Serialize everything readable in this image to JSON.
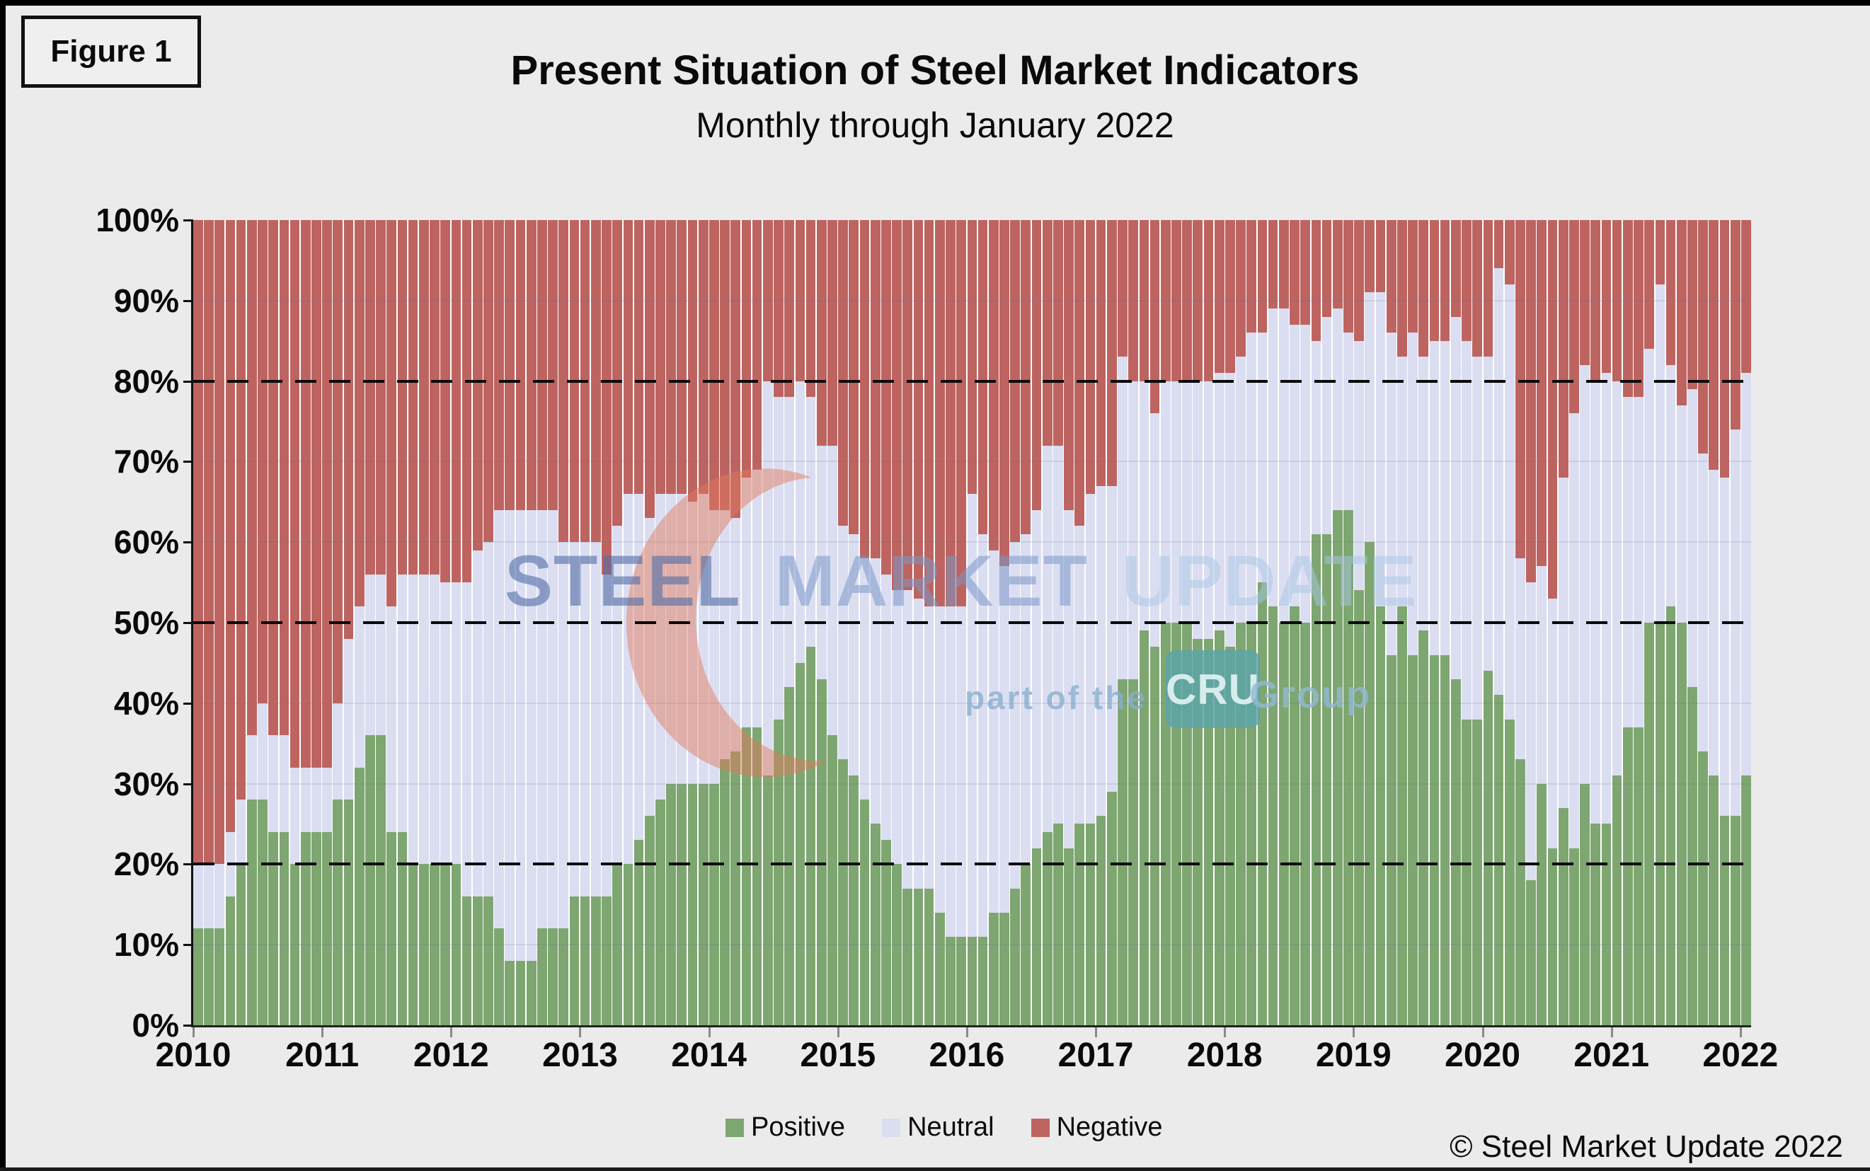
{
  "figure_label": "Figure 1",
  "title": "Present Situation of Steel Market Indicators",
  "subtitle": "Monthly through January 2022",
  "copyright": "© Steel Market Update 2022",
  "legend": [
    {
      "label": "Positive",
      "color": "#7EA671"
    },
    {
      "label": "Neutral",
      "color": "#DBDEF1"
    },
    {
      "label": "Negative",
      "color": "#BD6461"
    }
  ],
  "watermark": {
    "words": [
      "STEEL",
      "MARKET",
      "UPDATE"
    ],
    "tagline_prefix": "part of the",
    "cru_badge": "CRU",
    "tagline_suffix": "Group"
  },
  "colors": {
    "background": "#EBEBEB",
    "plot_background": "#FFFFFF",
    "positive": "#7EA671",
    "neutral": "#DBDEF1",
    "negative": "#BD6461",
    "axis": "#111111",
    "dashed_line": "#0A0A0A"
  },
  "chart_data": {
    "type": "bar",
    "stacked": true,
    "units": "percent",
    "x_monthly_range": {
      "start": "2010-01",
      "end": "2022-01",
      "points": 145
    },
    "x_tick_labels": [
      "2010",
      "2011",
      "2012",
      "2013",
      "2014",
      "2015",
      "2016",
      "2017",
      "2018",
      "2019",
      "2020",
      "2021",
      "2022"
    ],
    "y_tick_labels": [
      "0%",
      "10%",
      "20%",
      "30%",
      "40%",
      "50%",
      "60%",
      "70%",
      "80%",
      "90%",
      "100%"
    ],
    "ylim": [
      0,
      100
    ],
    "dashed_gridlines_at": [
      20,
      50,
      80
    ],
    "faint_gridlines_at": [
      10,
      30,
      40,
      60,
      70,
      90
    ],
    "legend_position": "bottom",
    "series": [
      {
        "name": "Positive",
        "color": "#7EA671",
        "values": [
          12,
          12,
          12,
          16,
          20,
          28,
          28,
          24,
          24,
          20,
          24,
          24,
          24,
          28,
          28,
          32,
          36,
          36,
          24,
          24,
          20,
          20,
          20,
          20,
          20,
          16,
          16,
          16,
          12,
          8,
          8,
          8,
          12,
          12,
          12,
          16,
          16,
          16,
          16,
          20,
          20,
          23,
          26,
          28,
          30,
          30,
          30,
          30,
          30,
          33,
          34,
          37,
          37,
          31,
          38,
          42,
          45,
          47,
          43,
          36,
          33,
          31,
          28,
          25,
          23,
          20,
          17,
          17,
          17,
          14,
          11,
          11,
          11,
          11,
          14,
          14,
          17,
          20,
          22,
          24,
          25,
          22,
          25,
          25,
          26,
          29,
          43,
          43,
          49,
          47,
          50,
          50,
          50,
          48,
          48,
          49,
          47,
          50,
          50,
          55,
          52,
          50,
          52,
          50,
          61,
          61,
          64,
          64,
          54,
          60,
          52,
          46,
          52,
          46,
          49,
          46,
          46,
          43,
          38,
          38,
          44,
          41,
          38,
          33,
          18,
          30,
          22,
          27,
          22,
          30,
          25,
          25,
          31,
          37,
          37,
          50,
          50,
          52,
          50,
          42,
          34,
          31,
          26,
          26,
          31
        ]
      },
      {
        "name": "Neutral",
        "color": "#DBDEF1",
        "values": [
          8,
          8,
          8,
          8,
          8,
          8,
          12,
          12,
          12,
          12,
          8,
          8,
          8,
          12,
          20,
          20,
          20,
          20,
          28,
          32,
          36,
          36,
          36,
          35,
          35,
          39,
          43,
          44,
          52,
          56,
          56,
          56,
          52,
          52,
          48,
          44,
          44,
          44,
          40,
          42,
          46,
          43,
          37,
          38,
          36,
          36,
          35,
          36,
          34,
          31,
          29,
          31,
          32,
          49,
          40,
          36,
          35,
          31,
          29,
          36,
          29,
          30,
          30,
          33,
          33,
          34,
          37,
          36,
          35,
          38,
          41,
          41,
          55,
          50,
          45,
          43,
          43,
          41,
          42,
          48,
          47,
          42,
          37,
          41,
          41,
          38,
          40,
          37,
          31,
          29,
          30,
          30,
          30,
          32,
          32,
          32,
          34,
          33,
          36,
          31,
          37,
          39,
          35,
          37,
          24,
          27,
          25,
          22,
          31,
          31,
          39,
          40,
          31,
          40,
          34,
          39,
          39,
          45,
          47,
          45,
          39,
          53,
          54,
          25,
          37,
          27,
          31,
          41,
          54,
          52,
          55,
          56,
          49,
          41,
          41,
          34,
          42,
          30,
          27,
          37,
          37,
          38,
          42,
          48,
          50
        ]
      },
      {
        "name": "Negative",
        "color": "#BD6461",
        "values": [
          80,
          80,
          80,
          76,
          72,
          64,
          60,
          64,
          64,
          68,
          68,
          68,
          68,
          60,
          52,
          48,
          44,
          44,
          48,
          44,
          44,
          44,
          44,
          45,
          45,
          45,
          41,
          40,
          36,
          36,
          36,
          36,
          36,
          36,
          40,
          40,
          40,
          40,
          44,
          38,
          34,
          34,
          37,
          34,
          34,
          34,
          35,
          34,
          36,
          36,
          37,
          32,
          31,
          20,
          22,
          22,
          20,
          22,
          28,
          28,
          38,
          39,
          42,
          42,
          44,
          46,
          46,
          47,
          48,
          48,
          48,
          48,
          34,
          39,
          41,
          43,
          40,
          39,
          36,
          28,
          28,
          36,
          38,
          34,
          33,
          33,
          17,
          20,
          20,
          24,
          20,
          20,
          20,
          20,
          20,
          19,
          19,
          17,
          14,
          14,
          11,
          11,
          13,
          13,
          15,
          12,
          11,
          14,
          15,
          9,
          9,
          14,
          17,
          14,
          17,
          15,
          15,
          12,
          15,
          17,
          17,
          6,
          8,
          42,
          45,
          43,
          47,
          32,
          24,
          18,
          20,
          19,
          20,
          22,
          22,
          16,
          8,
          18,
          23,
          21,
          29,
          31,
          32,
          26,
          19
        ]
      }
    ]
  }
}
